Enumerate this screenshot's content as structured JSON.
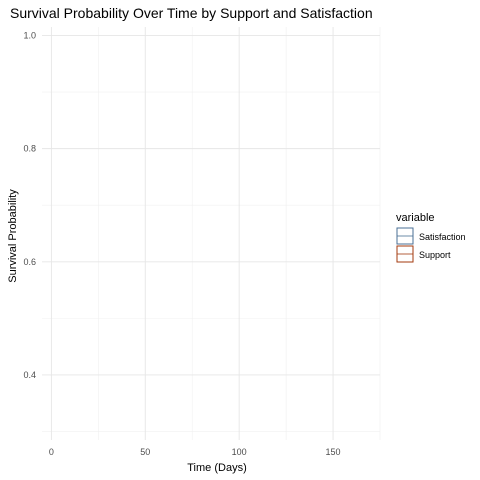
{
  "chart_data": {
    "type": "area",
    "title": "Survival Probability Over Time by Support and Satisfaction",
    "xlabel": "Time (Days)",
    "ylabel": "Survival Probability",
    "xlim": [
      -5,
      175
    ],
    "ylim": [
      0.285,
      1.015
    ],
    "x_ticks": [
      0,
      50,
      100,
      150
    ],
    "y_ticks": [
      0.4,
      0.6,
      0.8,
      1.0
    ],
    "x_tick_labels": [
      "0",
      "50",
      "100",
      "150"
    ],
    "y_tick_labels": [
      "0.4",
      "0.6",
      "0.8",
      "1.0"
    ],
    "grid": true,
    "legend": {
      "title": "variable",
      "placement": "right",
      "entries": [
        {
          "label": "Satisfaction",
          "color": "#4a6f95"
        },
        {
          "label": "Support",
          "color": "#a33a0e"
        }
      ]
    },
    "series": [
      {
        "name": "Satisfaction",
        "values": []
      },
      {
        "name": "Support",
        "values": []
      }
    ]
  }
}
